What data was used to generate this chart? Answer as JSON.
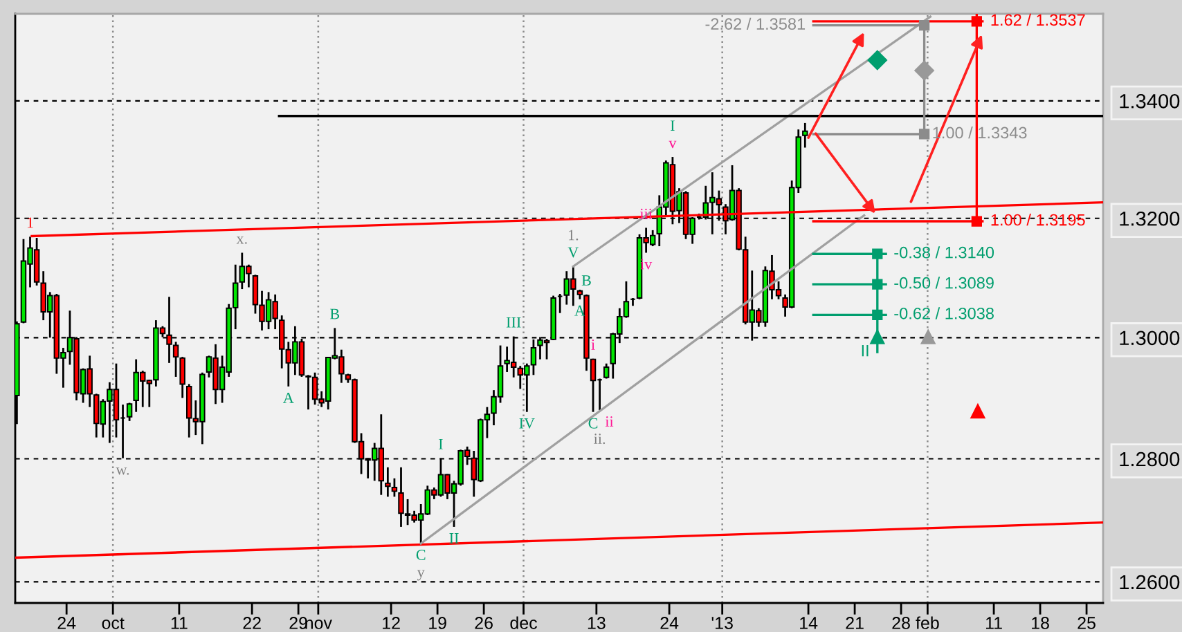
{
  "chart_data": {
    "type": "candlestick",
    "x": [
      "2012-09-16T12:00",
      "2012-09-17T12:00",
      "2012-09-18T12:00",
      "2012-09-19T12:00",
      "2012-09-20T12:00",
      "2012-09-21T12:00",
      "2012-09-22T12:00",
      "2012-09-23T12:00",
      "2012-09-24T12:00",
      "2012-09-25T12:00",
      "2012-09-26T12:00",
      "2012-09-27T12:00",
      "2012-09-28T12:00",
      "2012-09-29T12:00",
      "2012-09-30T12:00",
      "2012-10-01T12:00",
      "2012-10-02T12:00",
      "2012-10-03T12:00",
      "2012-10-04T12:00",
      "2012-10-05T12:00",
      "2012-10-06T12:00",
      "2012-10-07T12:00",
      "2012-10-08T12:00",
      "2012-10-09T12:00",
      "2012-10-10T12:00",
      "2012-10-11T12:00",
      "2012-10-12T12:00",
      "2012-10-13T12:00",
      "2012-10-14T12:00",
      "2012-10-15T12:00",
      "2012-10-16T12:00",
      "2012-10-17T12:00",
      "2012-10-18T12:00",
      "2012-10-19T12:00",
      "2012-10-20T12:00",
      "2012-10-21T12:00",
      "2012-10-22T12:00",
      "2012-10-23T12:00",
      "2012-10-24T12:00",
      "2012-10-25T12:00",
      "2012-10-26T12:00",
      "2012-10-27T12:00",
      "2012-10-28T12:00",
      "2012-10-29T12:00",
      "2012-10-30T12:00",
      "2012-10-31T12:00",
      "2012-11-01T12:00",
      "2012-11-02T12:00",
      "2012-11-03T12:00",
      "2012-11-04T12:00",
      "2012-11-05T12:00",
      "2012-11-06T12:00",
      "2012-11-07T12:00",
      "2012-11-08T12:00",
      "2012-11-09T12:00",
      "2012-11-10T12:00",
      "2012-11-11T12:00",
      "2012-11-12T12:00",
      "2012-11-13T12:00",
      "2012-11-14T12:00",
      "2012-11-15T12:00",
      "2012-11-16T12:00",
      "2012-11-17T12:00",
      "2012-11-18T12:00",
      "2012-11-19T12:00",
      "2012-11-20T12:00",
      "2012-11-21T12:00",
      "2012-11-22T12:00",
      "2012-11-23T12:00",
      "2012-11-24T12:00",
      "2012-11-25T12:00",
      "2012-11-26T12:00",
      "2012-11-27T12:00",
      "2012-11-28T12:00",
      "2012-11-29T12:00",
      "2012-11-30T12:00",
      "2012-12-01T12:00",
      "2012-12-02T12:00",
      "2012-12-03T12:00",
      "2012-12-04T12:00",
      "2012-12-05T12:00",
      "2012-12-06T12:00",
      "2012-12-07T12:00",
      "2012-12-08T12:00",
      "2012-12-09T12:00",
      "2012-12-10T12:00",
      "2012-12-11T12:00",
      "2012-12-12T12:00",
      "2012-12-13T12:00",
      "2012-12-14T12:00",
      "2012-12-15T12:00",
      "2012-12-16T12:00",
      "2012-12-17T12:00",
      "2012-12-18T12:00",
      "2012-12-19T12:00",
      "2012-12-20T12:00",
      "2012-12-21T12:00",
      "2012-12-22T12:00",
      "2012-12-23T12:00",
      "2012-12-24T12:00",
      "2012-12-25T12:00",
      "2012-12-26T12:00",
      "2012-12-27T12:00",
      "2012-12-28T12:00",
      "2012-12-29T12:00",
      "2012-12-30T12:00",
      "2012-12-31T12:00",
      "2013-01-01T12:00",
      "2013-01-02T12:00",
      "2013-01-03T12:00",
      "2013-01-04T12:00",
      "2013-01-05T12:00",
      "2013-01-06T12:00",
      "2013-01-07T12:00",
      "2013-01-08T12:00",
      "2013-01-09T12:00",
      "2013-01-10T12:00",
      "2013-01-11T12:00",
      "2013-01-12T12:00",
      "2013-01-13T12:00"
    ],
    "ohlc": [
      [
        1.2904,
        1.3027,
        1.2857,
        1.3023
      ],
      [
        1.3026,
        1.3165,
        1.3024,
        1.3128
      ],
      [
        1.3123,
        1.3169,
        1.3084,
        1.315
      ],
      [
        1.3147,
        1.3167,
        1.3087,
        1.3093
      ],
      [
        1.3091,
        1.3111,
        1.3029,
        1.3043
      ],
      [
        1.3043,
        1.3076,
        1.3,
        1.307
      ],
      [
        1.307,
        1.3073,
        1.294,
        1.2966
      ],
      [
        1.2966,
        1.2983,
        1.2917,
        1.2975
      ],
      [
        1.2977,
        1.3045,
        1.2955,
        1.3
      ],
      [
        1.2998,
        1.3001,
        1.2896,
        1.2909
      ],
      [
        1.2907,
        1.2949,
        1.2892,
        1.2947
      ],
      [
        1.2948,
        1.297,
        1.2885,
        1.2907
      ],
      [
        1.2905,
        1.2907,
        1.2835,
        1.2858
      ],
      [
        1.2857,
        1.2898,
        1.2835,
        1.2894
      ],
      [
        1.2895,
        1.2926,
        1.2826,
        1.2914
      ],
      [
        1.2914,
        1.2957,
        1.2835,
        1.2864
      ],
      [
        1.2867,
        1.2889,
        1.2801,
        1.2867
      ],
      [
        1.2869,
        1.2892,
        1.2862,
        1.289
      ],
      [
        1.2896,
        1.2964,
        1.2877,
        1.2942
      ],
      [
        1.2942,
        1.2945,
        1.2885,
        1.2928
      ],
      [
        1.2929,
        1.293,
        1.2885,
        1.2924
      ],
      [
        1.293,
        1.3029,
        1.2919,
        1.3016
      ],
      [
        1.3016,
        1.3019,
        1.3001,
        1.3007
      ],
      [
        1.3004,
        1.3068,
        1.2958,
        1.2989
      ],
      [
        1.2987,
        1.2993,
        1.2935,
        1.2968
      ],
      [
        1.2966,
        1.2968,
        1.29,
        1.2923
      ],
      [
        1.2919,
        1.2923,
        1.2835,
        1.2867
      ],
      [
        1.2866,
        1.2896,
        1.2839,
        1.2861
      ],
      [
        1.2861,
        1.2942,
        1.2824,
        1.2939
      ],
      [
        1.2943,
        1.297,
        1.2934,
        1.2968
      ],
      [
        1.2966,
        1.2989,
        1.289,
        1.2914
      ],
      [
        1.2914,
        1.297,
        1.2892,
        1.2951
      ],
      [
        1.2943,
        1.3056,
        1.2935,
        1.3049
      ],
      [
        1.305,
        1.3122,
        1.3014,
        1.3091
      ],
      [
        1.3093,
        1.3142,
        1.3081,
        1.3119
      ],
      [
        1.3119,
        1.3122,
        1.3084,
        1.3107
      ],
      [
        1.3103,
        1.3105,
        1.304,
        1.3055
      ],
      [
        1.3054,
        1.3078,
        1.3012,
        1.3027
      ],
      [
        1.3027,
        1.3076,
        1.3014,
        1.3063
      ],
      [
        1.306,
        1.3072,
        1.3014,
        1.3032
      ],
      [
        1.3029,
        1.3037,
        1.2949,
        1.2981
      ],
      [
        1.298,
        1.2993,
        1.2919,
        1.2958
      ],
      [
        1.2958,
        1.3019,
        1.2938,
        1.2993
      ],
      [
        1.2993,
        1.2998,
        1.2935,
        1.2938
      ],
      [
        1.2936,
        1.2938,
        1.2881,
        1.2935
      ],
      [
        1.2934,
        1.2942,
        1.2889,
        1.2898
      ],
      [
        1.2898,
        1.2911,
        1.2885,
        1.2892
      ],
      [
        1.2895,
        1.2968,
        1.2881,
        1.2967
      ],
      [
        1.2966,
        1.3016,
        1.2964,
        1.297
      ],
      [
        1.2968,
        1.298,
        1.2925,
        1.294
      ],
      [
        1.2938,
        1.294,
        1.2925,
        1.2931
      ],
      [
        1.293,
        1.2932,
        1.2826,
        1.2828
      ],
      [
        1.2828,
        1.2842,
        1.2775,
        1.28
      ],
      [
        1.28,
        1.2801,
        1.2768,
        1.2798
      ],
      [
        1.2798,
        1.2826,
        1.2764,
        1.2817
      ],
      [
        1.2817,
        1.2873,
        1.2741,
        1.2764
      ],
      [
        1.276,
        1.2786,
        1.2738,
        1.2755
      ],
      [
        1.2753,
        1.2768,
        1.2738,
        1.2747
      ],
      [
        1.2744,
        1.2786,
        1.2689,
        1.2711
      ],
      [
        1.271,
        1.2734,
        1.2692,
        1.2708
      ],
      [
        1.2708,
        1.2715,
        1.2696,
        1.27
      ],
      [
        1.27,
        1.2726,
        1.2662,
        1.271
      ],
      [
        1.271,
        1.2756,
        1.2708,
        1.2749
      ],
      [
        1.2749,
        1.2753,
        1.2734,
        1.2741
      ],
      [
        1.2741,
        1.2801,
        1.2738,
        1.2774
      ],
      [
        1.2774,
        1.2775,
        1.2734,
        1.2744
      ],
      [
        1.2744,
        1.2764,
        1.2689,
        1.2759
      ],
      [
        1.2759,
        1.2815,
        1.2756,
        1.2813
      ],
      [
        1.2814,
        1.282,
        1.279,
        1.2804
      ],
      [
        1.2801,
        1.2813,
        1.2738,
        1.2766
      ],
      [
        1.2764,
        1.2866,
        1.2762,
        1.2864
      ],
      [
        1.2864,
        1.2885,
        1.2834,
        1.2873
      ],
      [
        1.2875,
        1.2913,
        1.2855,
        1.2902
      ],
      [
        1.2902,
        1.2987,
        1.2892,
        1.2953
      ],
      [
        1.2957,
        1.2985,
        1.2943,
        1.2962
      ],
      [
        1.2959,
        1.3002,
        1.2934,
        1.2951
      ],
      [
        1.2949,
        1.2953,
        1.2915,
        1.2938
      ],
      [
        1.2938,
        1.2957,
        1.2877,
        1.2953
      ],
      [
        1.2955,
        1.2997,
        1.2938,
        1.2983
      ],
      [
        1.2987,
        1.3001,
        1.2964,
        1.2996
      ],
      [
        1.2995,
        1.2998,
        1.2964,
        1.2992
      ],
      [
        1.2997,
        1.307,
        1.2996,
        1.3066
      ],
      [
        1.3069,
        1.3073,
        1.3041,
        1.3069
      ],
      [
        1.3071,
        1.3111,
        1.3055,
        1.3098
      ],
      [
        1.3098,
        1.3119,
        1.3053,
        1.3081
      ],
      [
        1.3078,
        1.308,
        1.3064,
        1.3072
      ],
      [
        1.307,
        1.3072,
        1.2945,
        1.2966
      ],
      [
        1.2964,
        1.2965,
        1.2877,
        1.2929
      ],
      [
        1.293,
        1.2932,
        1.288,
        1.293
      ],
      [
        1.2934,
        1.2957,
        1.2932,
        1.2951
      ],
      [
        1.2957,
        1.3008,
        1.2932,
        1.3006
      ],
      [
        1.3006,
        1.3049,
        1.2991,
        1.3035
      ],
      [
        1.3035,
        1.3094,
        1.3033,
        1.306
      ],
      [
        1.3064,
        1.3066,
        1.3053,
        1.3064
      ],
      [
        1.3066,
        1.3173,
        1.3064,
        1.3167
      ],
      [
        1.3167,
        1.3184,
        1.3142,
        1.3159
      ],
      [
        1.3156,
        1.318,
        1.3153,
        1.3171
      ],
      [
        1.3174,
        1.3239,
        1.3153,
        1.3219
      ],
      [
        1.3219,
        1.3298,
        1.3202,
        1.3294
      ],
      [
        1.3291,
        1.3304,
        1.319,
        1.3212
      ],
      [
        1.3213,
        1.3251,
        1.3192,
        1.3245
      ],
      [
        1.3243,
        1.3246,
        1.3165,
        1.3173
      ],
      [
        1.3173,
        1.3202,
        1.3157,
        1.32
      ],
      [
        1.3202,
        1.3208,
        1.3198,
        1.3202
      ],
      [
        1.3202,
        1.3255,
        1.3198,
        1.3226
      ],
      [
        1.3227,
        1.3278,
        1.3173,
        1.3235
      ],
      [
        1.3233,
        1.3247,
        1.3196,
        1.3223
      ],
      [
        1.3219,
        1.3224,
        1.3173,
        1.3196
      ],
      [
        1.3198,
        1.329,
        1.3196,
        1.3247
      ],
      [
        1.3247,
        1.3251,
        1.3146,
        1.3148
      ],
      [
        1.3147,
        1.3169,
        1.3022,
        1.3026
      ],
      [
        1.3026,
        1.3112,
        1.2995,
        1.3046
      ],
      [
        1.3045,
        1.3049,
        1.3018,
        1.3026
      ],
      [
        1.3026,
        1.3119,
        1.3018,
        1.3112
      ],
      [
        1.3111,
        1.3138,
        1.3064,
        1.308
      ],
      [
        1.308,
        1.3094,
        1.3064,
        1.307
      ],
      [
        1.3066,
        1.3072,
        1.3035,
        1.3051
      ],
      [
        1.3051,
        1.3264,
        1.3049,
        1.3252
      ],
      [
        1.3252,
        1.3351,
        1.3243,
        1.3338
      ],
      [
        1.3341,
        1.3362,
        1.332,
        1.3348
      ]
    ],
    "colors": [
      "#00e600",
      "#00e600",
      "#00e600",
      "#ff0000",
      "#ff0000",
      "#00e600",
      "#ff0000",
      "#00e600",
      "#00e600",
      "#ff0000",
      "#00e600",
      "#ff0000",
      "#ff0000",
      "#00e600",
      "#00e600",
      "#ff0000",
      "#000000",
      "#00e600",
      "#00e600",
      "#ff0000",
      "#ff0000",
      "#00e600",
      "#ff0000",
      "#ff0000",
      "#ff0000",
      "#ff0000",
      "#ff0000",
      "#ff0000",
      "#00e600",
      "#00e600",
      "#ff0000",
      "#00e600",
      "#00e600",
      "#00e600",
      "#00e600",
      "#ff0000",
      "#ff0000",
      "#ff0000",
      "#00e600",
      "#ff0000",
      "#ff0000",
      "#ff0000",
      "#00e600",
      "#ff0000",
      "#ff0000",
      "#ff0000",
      "#ff0000",
      "#00e600",
      "#00e600",
      "#ff0000",
      "#ff0000",
      "#ff0000",
      "#ff0000",
      "#ff0000",
      "#00e600",
      "#ff0000",
      "#ff0000",
      "#ff0000",
      "#ff0000",
      "#ff0000",
      "#ff0000",
      "#00e600",
      "#00e600",
      "#ff0000",
      "#00e600",
      "#ff0000",
      "#00e600",
      "#00e600",
      "#ff0000",
      "#ff0000",
      "#00e600",
      "#00e600",
      "#00e600",
      "#00e600",
      "#00e600",
      "#ff0000",
      "#ff0000",
      "#00e600",
      "#00e600",
      "#00e600",
      "#ff0000",
      "#00e600",
      "#000000",
      "#00e600",
      "#ff0000",
      "#ff0000",
      "#ff0000",
      "#ff0000",
      "#000000",
      "#00e600",
      "#00e600",
      "#00e600",
      "#00e600",
      "#000000",
      "#00e600",
      "#ff0000",
      "#00e600",
      "#00e600",
      "#00e600",
      "#ff0000",
      "#00e600",
      "#ff0000",
      "#00e600",
      "#000000",
      "#00e600",
      "#00e600",
      "#ff0000",
      "#ff0000",
      "#00e600",
      "#ff0000",
      "#ff0000",
      "#00e600",
      "#ff0000",
      "#00e600",
      "#ff0000",
      "#ff0000",
      "#ff0000",
      "#00e600",
      "#00e600",
      "#00e600"
    ],
    "xlim": [
      "2012-09-16T06:00",
      "2013-02-27T12:00"
    ],
    "xticks": [
      {
        "value": "2012-09-24",
        "label": "24"
      },
      {
        "value": "2012-10-01",
        "label": "oct"
      },
      {
        "value": "2012-10-11",
        "label": "11"
      },
      {
        "value": "2012-10-22",
        "label": "22"
      },
      {
        "value": "2012-10-29",
        "label": "29"
      },
      {
        "value": "2012-11-01",
        "label": "nov"
      },
      {
        "value": "2012-11-12",
        "label": "12"
      },
      {
        "value": "2012-11-19",
        "label": "19"
      },
      {
        "value": "2012-11-26",
        "label": "26"
      },
      {
        "value": "2012-12-02",
        "label": "dec"
      },
      {
        "value": "2012-12-13",
        "label": "13"
      },
      {
        "value": "2012-12-24",
        "label": "24"
      },
      {
        "value": "2013-01-01",
        "label": "'13"
      },
      {
        "value": "2013-01-14",
        "label": "14"
      },
      {
        "value": "2013-01-21",
        "label": "21"
      },
      {
        "value": "2013-01-28",
        "label": "28"
      },
      {
        "value": "2013-02-01",
        "label": "feb"
      },
      {
        "value": "2013-02-11",
        "label": "11"
      },
      {
        "value": "2013-02-18",
        "label": "18"
      },
      {
        "value": "2013-02-25",
        "label": "25"
      }
    ],
    "ylim": [
      1.2566,
      1.355
    ],
    "yticks": [
      {
        "value": 1.26,
        "label": "1.2600"
      },
      {
        "value": 1.28,
        "label": "1.2800"
      },
      {
        "value": 1.3,
        "label": "1.3000"
      },
      {
        "value": 1.32,
        "label": "1.3200"
      },
      {
        "value": 1.34,
        "label": "1.3400"
      }
    ],
    "log": true,
    "grid": "y",
    "ref_lines": [
      {
        "axis": "x",
        "value": "2012-10-01",
        "color": "#8c8c8c",
        "line_style": "dotted"
      },
      {
        "axis": "x",
        "value": "2012-11-01",
        "color": "#8c8c8c",
        "line_style": "dotted"
      },
      {
        "axis": "x",
        "value": "2012-12-02",
        "color": "#8c8c8c",
        "line_style": "dotted"
      },
      {
        "axis": "x",
        "value": "2013-01-01",
        "color": "#8c8c8c",
        "line_style": "dotted"
      },
      {
        "axis": "x",
        "value": "2013-02-01",
        "color": "#8c8c8c",
        "line_style": "dotted"
      }
    ],
    "series": [
      {
        "type": "line",
        "color": "#ff0000",
        "x": [
          "2012-09-18T18:00",
          "2013-02-27T12:00"
        ],
        "values": [
          1.317,
          1.3227
        ]
      },
      {
        "type": "line",
        "color": "#ff0000",
        "x": [
          "2012-09-16T06:00",
          "2013-02-27T12:00"
        ],
        "values": [
          1.2639,
          1.2696
        ]
      },
      {
        "type": "line",
        "color": "#a0a0a0",
        "x": [
          "2012-12-09T12:00",
          "2013-02-01T10:00"
        ],
        "values": [
          1.3119,
          1.3545
        ]
      },
      {
        "type": "line",
        "color": "#a0a0a0",
        "x": [
          "2012-11-16T12:00",
          "2013-01-22T10:00"
        ],
        "values": [
          1.2662,
          1.3205
        ]
      },
      {
        "type": "line",
        "color": "#000000",
        "x": [
          "2012-10-26T02:00",
          "2013-02-27T12:00"
        ],
        "values": [
          1.3374,
          1.3374
        ]
      },
      {
        "type": "line",
        "color": "#ff0000",
        "x": [
          "2013-01-14T18:00",
          "2013-02-09T07:00"
        ],
        "values": [
          1.3537,
          1.3537
        ]
      },
      {
        "type": "line",
        "color": "#ff0000",
        "x": [
          "2013-01-14T18:00",
          "2013-02-09T07:00"
        ],
        "values": [
          1.3195,
          1.3195
        ]
      },
      {
        "type": "line",
        "color": "#8c8c8c",
        "x": [
          "2013-01-14T18:00",
          "2013-01-31T12:00"
        ],
        "values": [
          1.3343,
          1.3343
        ]
      },
      {
        "type": "line",
        "color": "#8c8c8c",
        "x": [
          "2013-01-14T18:00",
          "2013-01-31T12:00"
        ],
        "values": [
          1.353,
          1.353
        ]
      },
      {
        "type": "line",
        "color": "#009e6e",
        "x": [
          "2013-01-14T18:00",
          "2013-01-25T17:00"
        ],
        "values": [
          1.314,
          1.314
        ]
      },
      {
        "type": "line",
        "color": "#009e6e",
        "x": [
          "2013-01-14T18:00",
          "2013-01-25T17:00"
        ],
        "values": [
          1.3089,
          1.3089
        ]
      },
      {
        "type": "line",
        "color": "#009e6e",
        "x": [
          "2013-01-14T18:00",
          "2013-01-25T17:00"
        ],
        "values": [
          1.3038,
          1.3038
        ]
      },
      {
        "type": "line",
        "color": "#8c8c8c",
        "x": [
          "2013-01-31T12:00",
          "2013-01-31T12:00"
        ],
        "values": [
          1.3343,
          1.353
        ]
      },
      {
        "type": "line",
        "color": "#ff0000",
        "x": [
          "2013-02-08T10:00",
          "2013-02-08T10:00"
        ],
        "values": [
          1.3195,
          1.3548
        ]
      },
      {
        "type": "line",
        "color": "#009e6e",
        "x": [
          "2013-01-24T10:00",
          "2013-01-24T10:00"
        ],
        "values": [
          1.2976,
          1.314
        ]
      },
      {
        "type": "scatter",
        "color": "#8c8c8c",
        "marker": "square",
        "x": [
          "2013-01-31T12:00",
          "2013-01-31T12:00"
        ],
        "values": [
          1.3343,
          1.353
        ]
      },
      {
        "type": "scatter",
        "color": "#ff0000",
        "marker": "square",
        "x": [
          "2013-02-08T10:00",
          "2013-02-08T10:00"
        ],
        "values": [
          1.3195,
          1.3537
        ]
      },
      {
        "type": "scatter",
        "color": "#009e6e",
        "marker": "square",
        "x": [
          "2013-01-24T10:00",
          "2013-01-24T10:00",
          "2013-01-24T10:00"
        ],
        "values": [
          1.314,
          1.3089,
          1.3038
        ]
      },
      {
        "type": "scatter",
        "color": "#009e6e",
        "marker": "diamond",
        "x": [
          "2013-01-24T10:00"
        ],
        "values": [
          1.347
        ]
      },
      {
        "type": "scatter",
        "color": "#999999",
        "marker": "diamond",
        "x": [
          "2013-01-31T12:00"
        ],
        "values": [
          1.3452
        ]
      },
      {
        "type": "scatter",
        "color": "#ff0000",
        "marker": "triangle",
        "x": [
          "2013-02-08T14:00"
        ],
        "values": [
          1.2878
        ]
      },
      {
        "type": "scatter",
        "color": "#009e6e",
        "marker": "triangle",
        "x": [
          "2013-01-24T10:00"
        ],
        "values": [
          1.3001
        ]
      },
      {
        "type": "scatter",
        "color": "#999999",
        "marker": "triangle",
        "x": [
          "2013-02-01T02:00"
        ],
        "values": [
          1.3001
        ]
      }
    ],
    "annotations": [
      {
        "text": "1",
        "x": "2012-09-18T12:00",
        "y": 1.3169
      },
      {
        "text": "x.",
        "x": "2012-10-20T12:00",
        "y": 1.3142
      },
      {
        "text": "w.",
        "x": "2012-10-02T12:00",
        "y": 1.2801
      },
      {
        "text": "B",
        "x": "2012-11-03T12:00",
        "y": 1.3016
      },
      {
        "text": "A",
        "x": "2012-10-27T12:00",
        "y": 1.2919
      },
      {
        "text": "C",
        "x": "2012-11-16T12:00",
        "y": 1.2662
      },
      {
        "text": "y",
        "x": "2012-11-16T12:00",
        "y": 1.2662
      },
      {
        "text": "I",
        "x": "2012-11-19T12:00",
        "y": 1.2801
      },
      {
        "text": "II",
        "x": "2012-11-21T12:00",
        "y": 1.2689
      },
      {
        "text": "III",
        "x": "2012-11-30T12:00",
        "y": 1.3002
      },
      {
        "text": "IV",
        "x": "2012-12-02T12:00",
        "y": 1.2877
      },
      {
        "text": "V",
        "x": "2012-12-09T12:00",
        "y": 1.3119
      },
      {
        "text": "1.",
        "x": "2012-12-09T12:00",
        "y": 1.3119
      },
      {
        "text": "A",
        "x": "2012-12-10T12:00",
        "y": 1.3064
      },
      {
        "text": "B",
        "x": "2012-12-11T12:00",
        "y": 1.3072
      },
      {
        "text": "i",
        "x": "2012-12-12T12:00",
        "y": 1.2965
      },
      {
        "text": "C",
        "x": "2012-12-12T12:00",
        "y": 1.2877
      },
      {
        "text": "ii",
        "x": "2012-12-13T12:00",
        "y": 1.288
      },
      {
        "text": "ii.",
        "x": "2012-12-13T12:00",
        "y": 1.288
      },
      {
        "text": "iii",
        "x": "2012-12-20T12:00",
        "y": 1.3184
      },
      {
        "text": "iv",
        "x": "2012-12-20T12:00",
        "y": 1.3142
      },
      {
        "text": "v",
        "x": "2012-12-24T12:00",
        "y": 1.3304
      },
      {
        "text": "I",
        "x": "2012-12-24T12:00",
        "y": 1.3304
      },
      {
        "text": "II",
        "x": "2013-01-24T10:00",
        "y": 1.2976
      },
      {
        "text": "1.62 / 1.3537",
        "x": "2013-02-09T07:00",
        "y": 1.3537
      },
      {
        "text": "1.00 / 1.3195",
        "x": "2013-02-09T07:00",
        "y": 1.3195
      },
      {
        "text": "1.00 / 1.3343",
        "x": "2013-01-31T12:00",
        "y": 1.3343
      },
      {
        "text": "-2.62 / 1.3581",
        "x": "2013-01-14T18:00",
        "y": 1.353
      },
      {
        "text": "-0.38 / 1.3140",
        "x": "2013-01-25T17:00",
        "y": 1.314
      },
      {
        "text": "-0.50 / 1.3089",
        "x": "2013-01-25T17:00",
        "y": 1.3089
      },
      {
        "text": "-0.62 / 1.3038",
        "x": "2013-01-25T17:00",
        "y": 1.3038
      }
    ]
  }
}
